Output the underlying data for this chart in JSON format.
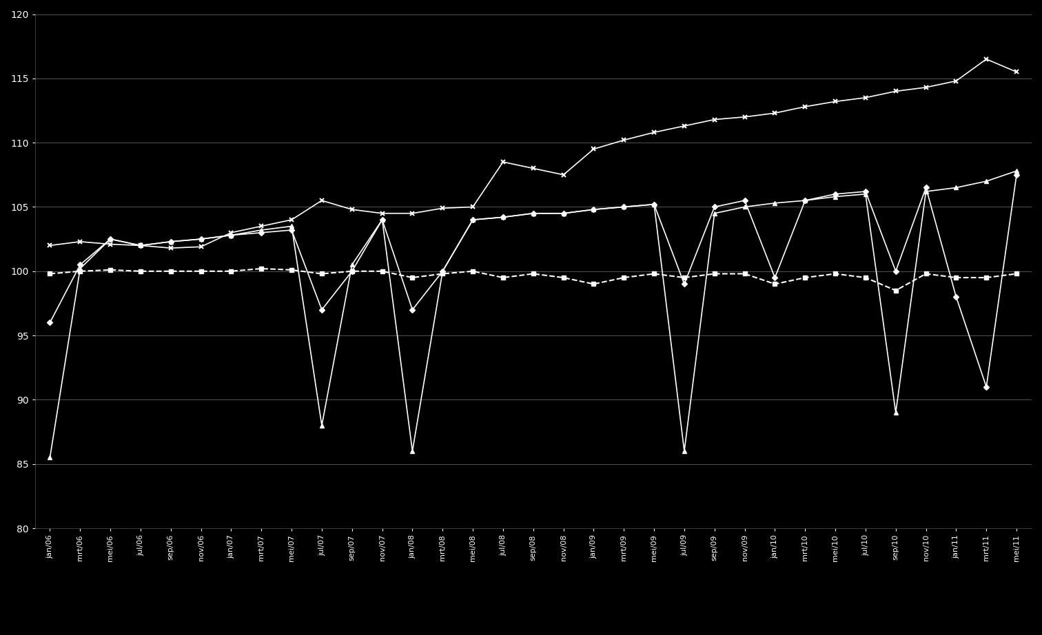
{
  "background_color": "#000000",
  "plot_bg_color": "#000000",
  "text_color": "#ffffff",
  "grid_color": "#555555",
  "line_color": "#ffffff",
  "ylim": [
    80,
    120
  ],
  "yticks": [
    80,
    85,
    90,
    95,
    100,
    105,
    110,
    115,
    120
  ],
  "x_labels": [
    "jan/06",
    "mrt/06",
    "mei/06",
    "jul/06",
    "sep/06",
    "nov/06",
    "jan/07",
    "mrt/07",
    "mei/07",
    "jul/07",
    "sep/07",
    "nov/07",
    "jan/08",
    "mrt/08",
    "mei/08",
    "jul/08",
    "sep/08",
    "nov/08",
    "jan/09",
    "mrt/09",
    "mei/09",
    "jul/09",
    "sep/09",
    "nov/09",
    "jan/10",
    "mrt/10",
    "mei/10",
    "jul/10",
    "sep/10",
    "nov/10",
    "jan/11",
    "mrt/11",
    "mei/11"
  ],
  "legend_box_color": "#ffffff",
  "series": {
    "cross": {
      "marker": "x",
      "linestyle": "-",
      "color": "#ffffff",
      "markersize": 5,
      "linewidth": 1.2,
      "values": [
        102.0,
        102.3,
        102.1,
        102.0,
        101.8,
        101.9,
        103.0,
        103.5,
        104.0,
        105.5,
        104.8,
        104.5,
        104.5,
        104.9,
        105.0,
        108.5,
        108.0,
        107.5,
        109.5,
        110.2,
        110.8,
        111.3,
        111.8,
        112.0,
        112.3,
        112.8,
        113.2,
        113.5,
        114.0,
        114.3,
        114.8,
        116.5,
        115.5
      ]
    },
    "triangle": {
      "marker": "^",
      "linestyle": "-",
      "color": "#ffffff",
      "markersize": 5,
      "linewidth": 1.2,
      "values": [
        85.5,
        100.2,
        102.5,
        102.0,
        102.3,
        102.5,
        102.8,
        103.2,
        103.5,
        88.0,
        100.5,
        104.0,
        86.0,
        100.0,
        104.0,
        104.2,
        104.5,
        104.5,
        104.8,
        105.0,
        105.2,
        86.0,
        104.5,
        105.0,
        105.3,
        105.5,
        105.8,
        106.0,
        89.0,
        106.2,
        106.5,
        107.0,
        107.8
      ]
    },
    "diamond": {
      "marker": "D",
      "linestyle": "-",
      "color": "#ffffff",
      "markersize": 4,
      "linewidth": 1.2,
      "values": [
        96.0,
        100.5,
        102.5,
        102.0,
        102.3,
        102.5,
        102.8,
        103.0,
        103.2,
        97.0,
        100.0,
        104.0,
        97.0,
        100.0,
        104.0,
        104.2,
        104.5,
        104.5,
        104.8,
        105.0,
        105.2,
        99.0,
        105.0,
        105.5,
        99.5,
        105.5,
        106.0,
        106.2,
        100.0,
        106.5,
        98.0,
        91.0,
        107.5
      ]
    },
    "square": {
      "marker": "s",
      "linestyle": "--",
      "color": "#ffffff",
      "markersize": 5,
      "linewidth": 1.5,
      "values": [
        99.8,
        100.0,
        100.1,
        100.0,
        100.0,
        100.0,
        100.0,
        100.2,
        100.1,
        99.8,
        100.0,
        100.0,
        99.5,
        99.8,
        100.0,
        99.5,
        99.8,
        99.5,
        99.0,
        99.5,
        99.8,
        99.5,
        99.8,
        99.8,
        99.0,
        99.5,
        99.8,
        99.5,
        98.5,
        99.8,
        99.5,
        99.5,
        99.8
      ]
    }
  }
}
